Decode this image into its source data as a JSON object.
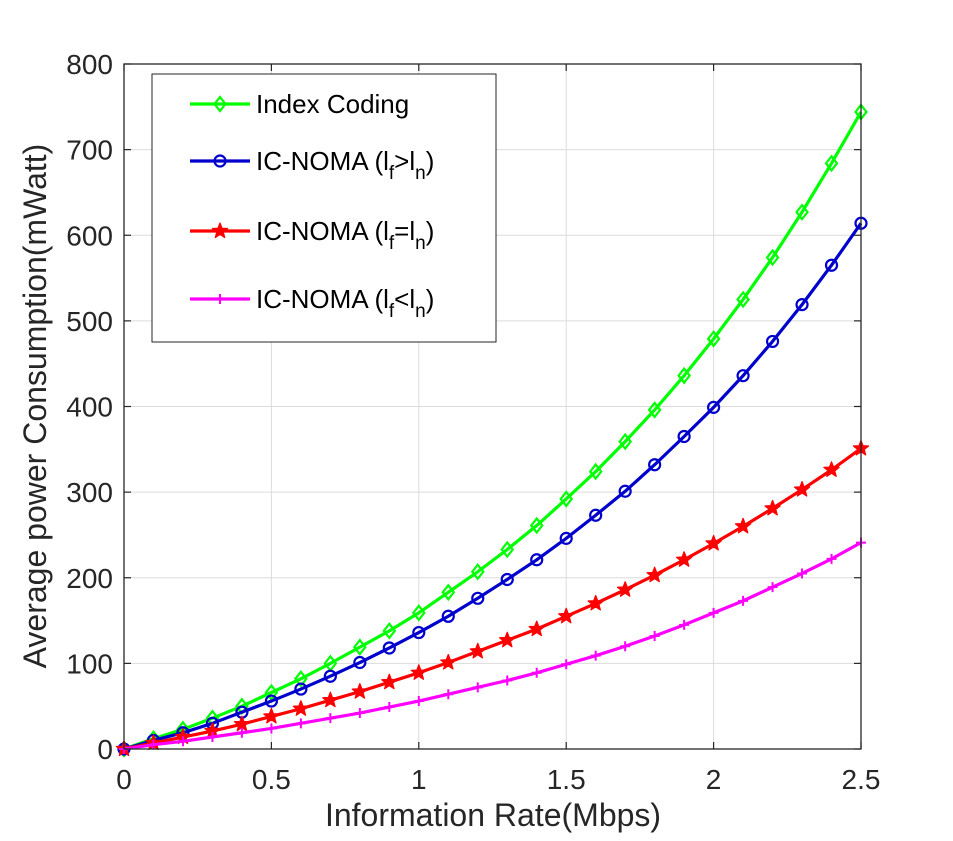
{
  "chart_data": {
    "type": "line",
    "title": "",
    "xlabel": "Information Rate(Mbps)",
    "ylabel": "Average power Consumption(mWatt)",
    "xlim": [
      0,
      2.5
    ],
    "ylim": [
      0,
      800
    ],
    "grid": true,
    "legend_position": "top-left",
    "x": [
      0,
      0.1,
      0.2,
      0.3,
      0.4,
      0.5,
      0.6,
      0.7,
      0.8,
      0.9,
      1.0,
      1.1,
      1.2,
      1.3,
      1.4,
      1.5,
      1.6,
      1.7,
      1.8,
      1.9,
      2.0,
      2.1,
      2.2,
      2.3,
      2.4,
      2.5
    ],
    "x_ticks": [
      {
        "value": 0,
        "label": "0"
      },
      {
        "value": 0.5,
        "label": "0.5"
      },
      {
        "value": 1,
        "label": "1"
      },
      {
        "value": 1.5,
        "label": "1.5"
      },
      {
        "value": 2,
        "label": "2"
      },
      {
        "value": 2.5,
        "label": "2.5"
      }
    ],
    "y_ticks": [
      {
        "value": 0,
        "label": "0"
      },
      {
        "value": 100,
        "label": "100"
      },
      {
        "value": 200,
        "label": "200"
      },
      {
        "value": 300,
        "label": "300"
      },
      {
        "value": 400,
        "label": "400"
      },
      {
        "value": 500,
        "label": "500"
      },
      {
        "value": 600,
        "label": "600"
      },
      {
        "value": 700,
        "label": "700"
      },
      {
        "value": 800,
        "label": "800"
      }
    ],
    "series": [
      {
        "name": "Index Coding",
        "legend_main": "Index Coding",
        "legend_parts": [
          {
            "t": "Index Coding",
            "sub": false
          }
        ],
        "color": "#00ff00",
        "marker": "diamond",
        "values": [
          0,
          12,
          23,
          36,
          50,
          66,
          82,
          100,
          119,
          138,
          159,
          183,
          207,
          233,
          261,
          292,
          324,
          359,
          396,
          436,
          479,
          525,
          574,
          627,
          684,
          744
        ]
      },
      {
        "name": "IC-NOMA (l_f>l_n)",
        "legend_parts": [
          {
            "t": "IC-NOMA (l",
            "sub": false
          },
          {
            "t": "f",
            "sub": true
          },
          {
            "t": ">l",
            "sub": false
          },
          {
            "t": "n",
            "sub": true
          },
          {
            "t": ")",
            "sub": false
          }
        ],
        "color": "#0000cc",
        "marker": "circle",
        "values": [
          0,
          10,
          19,
          30,
          43,
          56,
          70,
          85,
          101,
          118,
          136,
          155,
          176,
          198,
          221,
          246,
          273,
          301,
          332,
          365,
          399,
          436,
          476,
          519,
          565,
          614
        ]
      },
      {
        "name": "IC-NOMA (l_f=l_n)",
        "legend_parts": [
          {
            "t": "IC-NOMA (l",
            "sub": false
          },
          {
            "t": "f",
            "sub": true
          },
          {
            "t": "=l",
            "sub": false
          },
          {
            "t": "n",
            "sub": true
          },
          {
            "t": ")",
            "sub": false
          }
        ],
        "color": "#ff0000",
        "marker": "star",
        "values": [
          0,
          7,
          14,
          21,
          29,
          38,
          47,
          57,
          67,
          78,
          89,
          101,
          114,
          127,
          140,
          155,
          170,
          186,
          203,
          221,
          240,
          260,
          281,
          303,
          326,
          351
        ]
      },
      {
        "name": "IC-NOMA (l_f<l_n)",
        "legend_parts": [
          {
            "t": "IC-NOMA (l",
            "sub": false
          },
          {
            "t": "f",
            "sub": true
          },
          {
            "t": "<l",
            "sub": false
          },
          {
            "t": "n",
            "sub": true
          },
          {
            "t": ")",
            "sub": false
          }
        ],
        "color": "#ff00ff",
        "marker": "plus",
        "values": [
          0,
          5,
          9,
          14,
          19,
          24,
          30,
          36,
          42,
          49,
          56,
          64,
          72,
          80,
          89,
          99,
          109,
          120,
          132,
          145,
          159,
          173,
          189,
          205,
          222,
          241
        ]
      }
    ]
  }
}
